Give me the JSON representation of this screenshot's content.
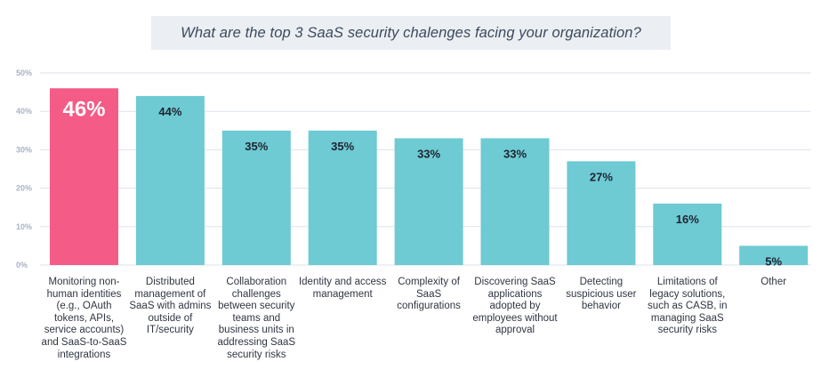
{
  "chart_data": {
    "type": "bar",
    "title": "What are the top 3 SaaS security chalenges facing your organization?",
    "categories": [
      "Monitoring non-human identities (e.g., OAuth tokens, APIs, service accounts) and SaaS-to-SaaS integrations",
      "Distributed management of SaaS with admins outside of IT/security",
      "Collaboration challenges between security teams and business units in addressing SaaS security risks",
      "Identity and access management",
      "Complexity of SaaS configurations",
      "Discovering SaaS applications adopted by employees without approval",
      "Detecting suspicious user behavior",
      "Limitations of legacy solutions, such as CASB, in managing SaaS security risks",
      "Other"
    ],
    "values": [
      46,
      44,
      35,
      35,
      33,
      33,
      27,
      16,
      5
    ],
    "value_labels": [
      "46%",
      "44%",
      "35%",
      "35%",
      "33%",
      "33%",
      "27%",
      "16%",
      "5%"
    ],
    "ylim": [
      0,
      50
    ],
    "yticks": [
      0,
      10,
      20,
      30,
      40,
      50
    ],
    "ytick_labels": [
      "0%",
      "10%",
      "20%",
      "30%",
      "40%",
      "50%"
    ],
    "grid": true,
    "colors": {
      "highlight": "#f45b86",
      "bar": "#6ecad3",
      "grid": "#dde3ea",
      "tick": "#a9b3c4"
    }
  }
}
